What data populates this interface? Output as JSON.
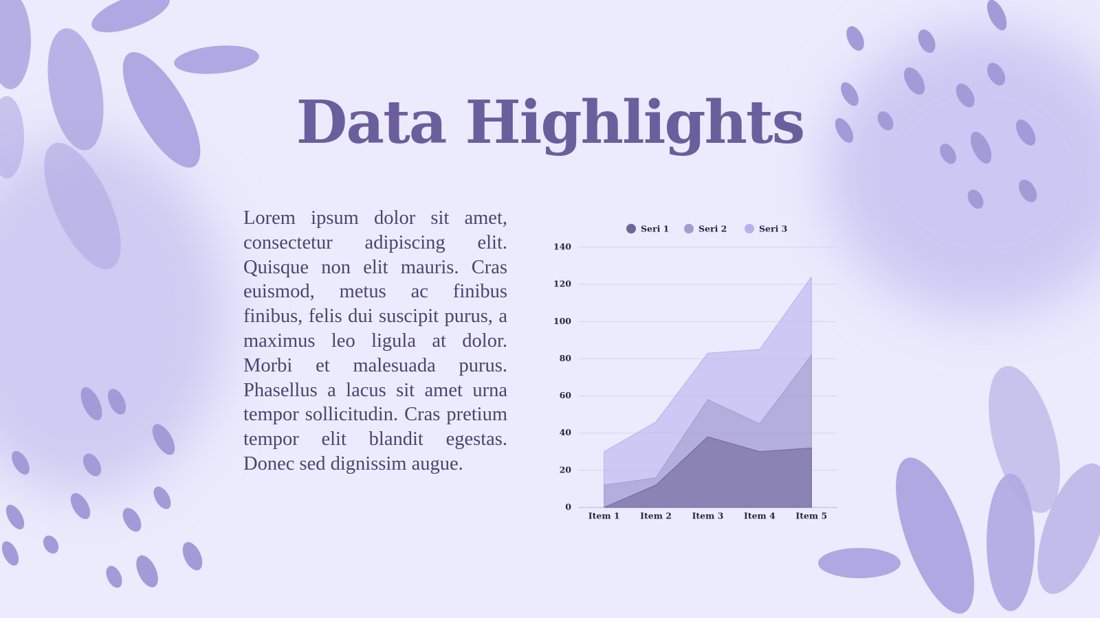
{
  "slide": {
    "title": "Data Highlights",
    "body": "Lorem ipsum dolor sit amet, consectetur adipiscing elit. Quisque non elit mauris. Cras euismod, metus ac finibus finibus, felis dui suscipit purus, a maximus leo ligula at dolor. Morbi et malesuada purus. Phasellus a lacus sit amet urna tempor sollicitudin. Cras pretium tempor elit blandit egestas. Donec sed dignissim augue."
  },
  "chart_data": {
    "type": "area",
    "categories": [
      "Item 1",
      "Item 2",
      "Item 3",
      "Item 4",
      "Item 5"
    ],
    "series": [
      {
        "name": "Seri 1",
        "color": "#6e6699",
        "values": [
          0,
          12,
          38,
          30,
          32
        ]
      },
      {
        "name": "Seri 2",
        "color": "#a29dcc",
        "values": [
          12,
          16,
          58,
          45,
          82
        ]
      },
      {
        "name": "Seri 3",
        "color": "#b9b1ee",
        "values": [
          30,
          46,
          83,
          85,
          124
        ]
      }
    ],
    "ylim": [
      0,
      140
    ],
    "yticks": [
      0,
      20,
      40,
      60,
      80,
      100,
      120,
      140
    ],
    "grid": true,
    "legend": "top"
  }
}
